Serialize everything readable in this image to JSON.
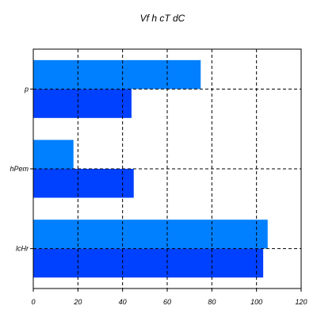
{
  "chart_data": {
    "type": "bar",
    "orientation": "horizontal",
    "title": "Vf h  cT dC",
    "xlabel": "",
    "ylabel": "",
    "categories": [
      "p",
      "hPem",
      "lcHr"
    ],
    "series": [
      {
        "values": [
          75,
          18,
          105
        ],
        "color": "#0080ff"
      },
      {
        "values": [
          44,
          45,
          103
        ],
        "color": "#0040ff"
      }
    ],
    "xlim": [
      0,
      120
    ],
    "xticks": [
      0,
      20,
      40,
      60,
      80,
      100,
      120
    ],
    "grid": true,
    "grid_style": "dashed",
    "legend": "none"
  }
}
